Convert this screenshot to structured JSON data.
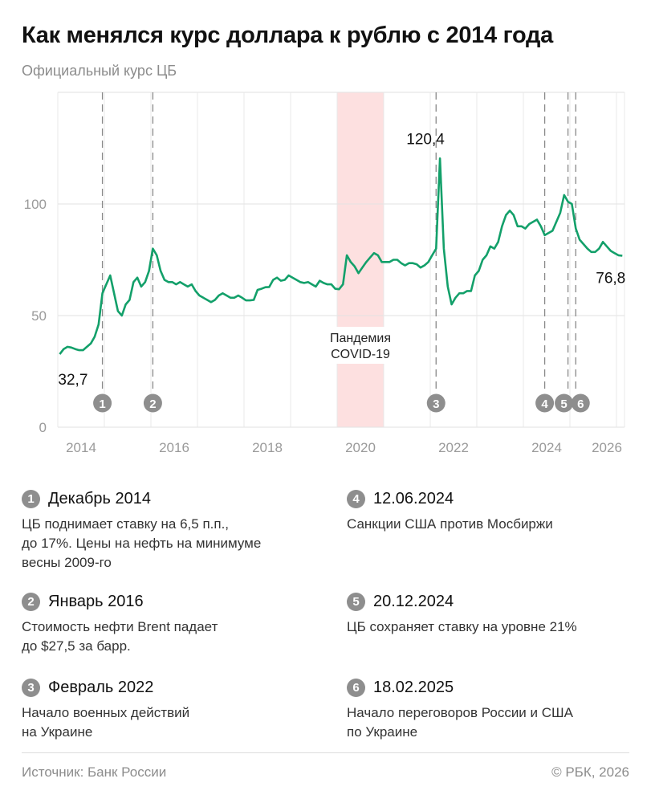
{
  "header": {
    "title": "Как менялся курс доллара к рублю с 2014 года",
    "subtitle": "Официальный курс ЦБ"
  },
  "chart_data": {
    "type": "line",
    "title": "Как менялся курс доллара к рублю с 2014 года",
    "ylim": [
      0,
      150
    ],
    "yticks": [
      0,
      50,
      100,
      150
    ],
    "ytick_labels": [
      "0",
      "50",
      "100",
      ""
    ],
    "xlim": [
      "2014-01",
      "2026-03"
    ],
    "xtick_labels": [
      "2014",
      "2016",
      "2018",
      "2020",
      "2022",
      "2024",
      "2026"
    ],
    "grid": true,
    "line_color": "#13a06a",
    "x": [
      "2014-01",
      "2014-02",
      "2014-03",
      "2014-04",
      "2014-05",
      "2014-06",
      "2014-07",
      "2014-08",
      "2014-09",
      "2014-10",
      "2014-11",
      "2014-12",
      "2015-01",
      "2015-02",
      "2015-03",
      "2015-04",
      "2015-05",
      "2015-06",
      "2015-07",
      "2015-08",
      "2015-09",
      "2015-10",
      "2015-11",
      "2015-12",
      "2016-01",
      "2016-02",
      "2016-03",
      "2016-04",
      "2016-05",
      "2016-06",
      "2016-07",
      "2016-08",
      "2016-09",
      "2016-10",
      "2016-11",
      "2016-12",
      "2017-01",
      "2017-02",
      "2017-03",
      "2017-04",
      "2017-05",
      "2017-06",
      "2017-07",
      "2017-08",
      "2017-09",
      "2017-10",
      "2017-11",
      "2017-12",
      "2018-01",
      "2018-02",
      "2018-03",
      "2018-04",
      "2018-05",
      "2018-06",
      "2018-07",
      "2018-08",
      "2018-09",
      "2018-10",
      "2018-11",
      "2018-12",
      "2019-01",
      "2019-02",
      "2019-03",
      "2019-04",
      "2019-05",
      "2019-06",
      "2019-07",
      "2019-08",
      "2019-09",
      "2019-10",
      "2019-11",
      "2019-12",
      "2020-01",
      "2020-02",
      "2020-03",
      "2020-04",
      "2020-05",
      "2020-06",
      "2020-07",
      "2020-08",
      "2020-09",
      "2020-10",
      "2020-11",
      "2020-12",
      "2021-01",
      "2021-02",
      "2021-03",
      "2021-04",
      "2021-05",
      "2021-06",
      "2021-07",
      "2021-08",
      "2021-09",
      "2021-10",
      "2021-11",
      "2021-12",
      "2022-01",
      "2022-02",
      "2022-03",
      "2022-04",
      "2022-05",
      "2022-06",
      "2022-07",
      "2022-08",
      "2022-09",
      "2022-10",
      "2022-11",
      "2022-12",
      "2023-01",
      "2023-02",
      "2023-03",
      "2023-04",
      "2023-05",
      "2023-06",
      "2023-07",
      "2023-08",
      "2023-09",
      "2023-10",
      "2023-11",
      "2023-12",
      "2024-01",
      "2024-02",
      "2024-03",
      "2024-04",
      "2024-05",
      "2024-06",
      "2024-07",
      "2024-08",
      "2024-09",
      "2024-10",
      "2024-11",
      "2024-12",
      "2025-01",
      "2025-02",
      "2025-03",
      "2025-04",
      "2025-05",
      "2025-06",
      "2025-07",
      "2025-08",
      "2025-09",
      "2025-10",
      "2025-11",
      "2025-12",
      "2026-01",
      "2026-02"
    ],
    "values": [
      32.7,
      35,
      36,
      35.7,
      35,
      34.5,
      34.5,
      36,
      37.5,
      40.5,
      46,
      60,
      64,
      68,
      60,
      52,
      50,
      55,
      57,
      65,
      67,
      63,
      65,
      70,
      80,
      77,
      70,
      66,
      65,
      65,
      64,
      65,
      64,
      63,
      64,
      61,
      59,
      58,
      57,
      56,
      57,
      59,
      60,
      59,
      58,
      58,
      59,
      58,
      56.8,
      56.8,
      57,
      61.5,
      62,
      62.7,
      62.8,
      66,
      67,
      65.6,
      66,
      68,
      67,
      66,
      65,
      64.6,
      65,
      64,
      63,
      65.6,
      64.6,
      64,
      64,
      62,
      61.8,
      64,
      77,
      74,
      72,
      69,
      71.5,
      74,
      76,
      78,
      77,
      74,
      74,
      74,
      75,
      75,
      73.5,
      72.5,
      73.5,
      73.5,
      73,
      71.5,
      72.5,
      74,
      77,
      80,
      120.4,
      80,
      63,
      55,
      58,
      60,
      60,
      61,
      61,
      68,
      70,
      75,
      77,
      81,
      80,
      83,
      90,
      95,
      97,
      95,
      90,
      90,
      89,
      91,
      92,
      93,
      90,
      86,
      87,
      88,
      92,
      96,
      104,
      101,
      100,
      89,
      84,
      82,
      80,
      78.5,
      78.5,
      80,
      83,
      81,
      79,
      78,
      77,
      76.8
    ],
    "annotations": [
      {
        "label": "32,7",
        "x": "2014-01",
        "value": 32.7
      },
      {
        "label": "120,4",
        "x": "2022-03",
        "value": 120.4
      },
      {
        "label": "76,8",
        "x": "2026-02",
        "value": 76.8
      }
    ],
    "shaded_region": {
      "label": "Пандемия\nCOVID-19",
      "from": "2020-01",
      "to": "2021-01",
      "color": "#fde0e0"
    },
    "events": [
      {
        "n": "1",
        "date": "2014-12"
      },
      {
        "n": "2",
        "date": "2016-01"
      },
      {
        "n": "3",
        "date": "2022-02"
      },
      {
        "n": "4",
        "date": "2024-06"
      },
      {
        "n": "5",
        "date": "2024-12"
      },
      {
        "n": "6",
        "date": "2025-02"
      }
    ]
  },
  "legend": [
    {
      "n": "1",
      "title": "Декабрь 2014",
      "desc": "ЦБ поднимает ставку на 6,5 п.п.,\nдо 17%. Цены на нефть на минимуме\nвесны 2009-го"
    },
    {
      "n": "2",
      "title": "Январь 2016",
      "desc": "Стоимость нефти Brent падает\nдо $27,5 за барр."
    },
    {
      "n": "3",
      "title": "Февраль 2022",
      "desc": "Начало военных действий\nна Украине"
    },
    {
      "n": "4",
      "title": "12.06.2024",
      "desc": "Санкции США против Мосбиржи"
    },
    {
      "n": "5",
      "title": "20.12.2024",
      "desc": "ЦБ сохраняет ставку на уровне 21%"
    },
    {
      "n": "6",
      "title": "18.02.2025",
      "desc": "Начало переговоров России и США\nпо Украине"
    }
  ],
  "footer": {
    "source": "Источник: Банк России",
    "copyright": "© РБК, 2026"
  }
}
